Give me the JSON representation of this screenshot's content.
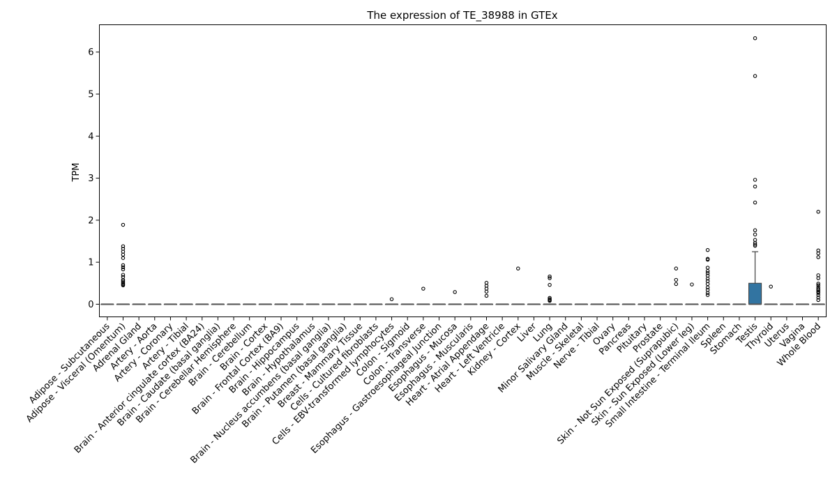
{
  "chart_data": {
    "type": "box",
    "title": "The expression of TE_38988 in GTEx",
    "xlabel": "",
    "ylabel": "TPM",
    "ylim": [
      -0.3,
      6.65
    ],
    "yticks": [
      0,
      1,
      2,
      3,
      4,
      5,
      6
    ],
    "grid": false,
    "legend": "none",
    "colors": {
      "box": "#3274a1",
      "median": "#555555",
      "edge": "#3d3d3d",
      "outlier": "#000000"
    },
    "categories": [
      "Adipose - Subcutaneous",
      "Adipose - Visceral (Omentum)",
      "Adrenal Gland",
      "Artery - Aorta",
      "Artery - Coronary",
      "Artery - Tibial",
      "Brain - Anterior cingulate cortex (BA24)",
      "Brain - Caudate (basal ganglia)",
      "Brain - Cerebellar Hemisphere",
      "Brain - Cerebellum",
      "Brain - Cortex",
      "Brain - Frontal Cortex (BA9)",
      "Brain - Hippocampus",
      "Brain - Hypothalamus",
      "Brain - Nucleus accumbens (basal ganglia)",
      "Brain - Putamen (basal ganglia)",
      "Breast - Mammary Tissue",
      "Cells - Cultured fibroblasts",
      "Cells - EBV-transformed lymphocytes",
      "Colon - Sigmoid",
      "Colon - Transverse",
      "Esophagus - Gastroesophageal Junction",
      "Esophagus - Mucosa",
      "Esophagus - Muscularis",
      "Heart - Atrial Appendage",
      "Heart - Left Ventricle",
      "Kidney - Cortex",
      "Liver",
      "Lung",
      "Minor Salivary Gland",
      "Muscle - Skeletal",
      "Nerve - Tibial",
      "Ovary",
      "Pancreas",
      "Pituitary",
      "Prostate",
      "Skin - Not Sun Exposed (Suprapubic)",
      "Skin - Sun Exposed (Lower leg)",
      "Small Intestine - Terminal Ileum",
      "Spleen",
      "Stomach",
      "Testis",
      "Thyroid",
      "Uterus",
      "Vagina",
      "Whole Blood"
    ],
    "boxes": [
      {
        "q1": 0,
        "median": 0,
        "q3": 0,
        "whisker_low": 0,
        "whisker_high": 0,
        "outliers": []
      },
      {
        "q1": 0,
        "median": 0,
        "q3": 0,
        "whisker_low": 0,
        "whisker_high": 0,
        "outliers": [
          1.89,
          1.38,
          1.32,
          1.25,
          1.18,
          1.1,
          0.93,
          0.88,
          0.83,
          0.7,
          0.65,
          0.58,
          0.55,
          0.52,
          0.49,
          0.47,
          0.45
        ]
      },
      {
        "q1": 0,
        "median": 0,
        "q3": 0,
        "whisker_low": 0,
        "whisker_high": 0,
        "outliers": []
      },
      {
        "q1": 0,
        "median": 0,
        "q3": 0,
        "whisker_low": 0,
        "whisker_high": 0,
        "outliers": []
      },
      {
        "q1": 0,
        "median": 0,
        "q3": 0,
        "whisker_low": 0,
        "whisker_high": 0,
        "outliers": []
      },
      {
        "q1": 0,
        "median": 0,
        "q3": 0,
        "whisker_low": 0,
        "whisker_high": 0,
        "outliers": []
      },
      {
        "q1": 0,
        "median": 0,
        "q3": 0,
        "whisker_low": 0,
        "whisker_high": 0,
        "outliers": []
      },
      {
        "q1": 0,
        "median": 0,
        "q3": 0,
        "whisker_low": 0,
        "whisker_high": 0,
        "outliers": []
      },
      {
        "q1": 0,
        "median": 0,
        "q3": 0,
        "whisker_low": 0,
        "whisker_high": 0,
        "outliers": []
      },
      {
        "q1": 0,
        "median": 0,
        "q3": 0,
        "whisker_low": 0,
        "whisker_high": 0,
        "outliers": []
      },
      {
        "q1": 0,
        "median": 0,
        "q3": 0,
        "whisker_low": 0,
        "whisker_high": 0,
        "outliers": []
      },
      {
        "q1": 0,
        "median": 0,
        "q3": 0,
        "whisker_low": 0,
        "whisker_high": 0,
        "outliers": []
      },
      {
        "q1": 0,
        "median": 0,
        "q3": 0,
        "whisker_low": 0,
        "whisker_high": 0,
        "outliers": []
      },
      {
        "q1": 0,
        "median": 0,
        "q3": 0,
        "whisker_low": 0,
        "whisker_high": 0,
        "outliers": []
      },
      {
        "q1": 0,
        "median": 0,
        "q3": 0,
        "whisker_low": 0,
        "whisker_high": 0,
        "outliers": []
      },
      {
        "q1": 0,
        "median": 0,
        "q3": 0,
        "whisker_low": 0,
        "whisker_high": 0,
        "outliers": []
      },
      {
        "q1": 0,
        "median": 0,
        "q3": 0,
        "whisker_low": 0,
        "whisker_high": 0,
        "outliers": []
      },
      {
        "q1": 0,
        "median": 0,
        "q3": 0,
        "whisker_low": 0,
        "whisker_high": 0,
        "outliers": []
      },
      {
        "q1": 0,
        "median": 0,
        "q3": 0,
        "whisker_low": 0,
        "whisker_high": 0,
        "outliers": [
          0.12
        ]
      },
      {
        "q1": 0,
        "median": 0,
        "q3": 0,
        "whisker_low": 0,
        "whisker_high": 0,
        "outliers": []
      },
      {
        "q1": 0,
        "median": 0,
        "q3": 0,
        "whisker_low": 0,
        "whisker_high": 0,
        "outliers": [
          0.37
        ]
      },
      {
        "q1": 0,
        "median": 0,
        "q3": 0,
        "whisker_low": 0,
        "whisker_high": 0,
        "outliers": []
      },
      {
        "q1": 0,
        "median": 0,
        "q3": 0,
        "whisker_low": 0,
        "whisker_high": 0,
        "outliers": [
          0.29
        ]
      },
      {
        "q1": 0,
        "median": 0,
        "q3": 0,
        "whisker_low": 0,
        "whisker_high": 0,
        "outliers": []
      },
      {
        "q1": 0,
        "median": 0,
        "q3": 0,
        "whisker_low": 0,
        "whisker_high": 0,
        "outliers": [
          0.51,
          0.44,
          0.37,
          0.3,
          0.2
        ]
      },
      {
        "q1": 0,
        "median": 0,
        "q3": 0,
        "whisker_low": 0,
        "whisker_high": 0,
        "outliers": []
      },
      {
        "q1": 0,
        "median": 0,
        "q3": 0,
        "whisker_low": 0,
        "whisker_high": 0,
        "outliers": [
          0.85
        ]
      },
      {
        "q1": 0,
        "median": 0,
        "q3": 0,
        "whisker_low": 0,
        "whisker_high": 0,
        "outliers": []
      },
      {
        "q1": 0,
        "median": 0,
        "q3": 0,
        "whisker_low": 0,
        "whisker_high": 0,
        "outliers": [
          0.66,
          0.62,
          0.46,
          0.15,
          0.12,
          0.1,
          0.08
        ]
      },
      {
        "q1": 0,
        "median": 0,
        "q3": 0,
        "whisker_low": 0,
        "whisker_high": 0,
        "outliers": []
      },
      {
        "q1": 0,
        "median": 0,
        "q3": 0,
        "whisker_low": 0,
        "whisker_high": 0,
        "outliers": []
      },
      {
        "q1": 0,
        "median": 0,
        "q3": 0,
        "whisker_low": 0,
        "whisker_high": 0,
        "outliers": []
      },
      {
        "q1": 0,
        "median": 0,
        "q3": 0,
        "whisker_low": 0,
        "whisker_high": 0,
        "outliers": []
      },
      {
        "q1": 0,
        "median": 0,
        "q3": 0,
        "whisker_low": 0,
        "whisker_high": 0,
        "outliers": []
      },
      {
        "q1": 0,
        "median": 0,
        "q3": 0,
        "whisker_low": 0,
        "whisker_high": 0,
        "outliers": []
      },
      {
        "q1": 0,
        "median": 0,
        "q3": 0,
        "whisker_low": 0,
        "whisker_high": 0,
        "outliers": []
      },
      {
        "q1": 0,
        "median": 0,
        "q3": 0,
        "whisker_low": 0,
        "whisker_high": 0,
        "outliers": [
          0.85,
          0.58,
          0.48
        ]
      },
      {
        "q1": 0,
        "median": 0,
        "q3": 0,
        "whisker_low": 0,
        "whisker_high": 0,
        "outliers": [
          0.47
        ]
      },
      {
        "q1": 0,
        "median": 0,
        "q3": 0,
        "whisker_low": 0,
        "whisker_high": 0,
        "outliers": [
          1.29,
          1.08,
          1.06,
          0.87,
          0.79,
          0.74,
          0.68,
          0.61,
          0.55,
          0.48,
          0.4,
          0.34,
          0.27,
          0.22
        ]
      },
      {
        "q1": 0,
        "median": 0,
        "q3": 0,
        "whisker_low": 0,
        "whisker_high": 0,
        "outliers": []
      },
      {
        "q1": 0,
        "median": 0,
        "q3": 0,
        "whisker_low": 0,
        "whisker_high": 0,
        "outliers": []
      },
      {
        "q1": 0,
        "median": 0,
        "q3": 0.5,
        "whisker_low": 0,
        "whisker_high": 1.25,
        "outliers": [
          6.33,
          5.43,
          2.96,
          2.8,
          2.42,
          1.76,
          1.66,
          1.53,
          1.46,
          1.42,
          1.39
        ]
      },
      {
        "q1": 0,
        "median": 0,
        "q3": 0,
        "whisker_low": 0,
        "whisker_high": 0,
        "outliers": [
          0.42
        ]
      },
      {
        "q1": 0,
        "median": 0,
        "q3": 0,
        "whisker_low": 0,
        "whisker_high": 0,
        "outliers": []
      },
      {
        "q1": 0,
        "median": 0,
        "q3": 0,
        "whisker_low": 0,
        "whisker_high": 0,
        "outliers": []
      },
      {
        "q1": 0,
        "median": 0,
        "q3": 0,
        "whisker_low": 0,
        "whisker_high": 0,
        "outliers": [
          2.2,
          1.28,
          1.21,
          1.12,
          0.69,
          0.62,
          0.49,
          0.45,
          0.4,
          0.36,
          0.33,
          0.3,
          0.27,
          0.22,
          0.16,
          0.1
        ]
      }
    ]
  }
}
